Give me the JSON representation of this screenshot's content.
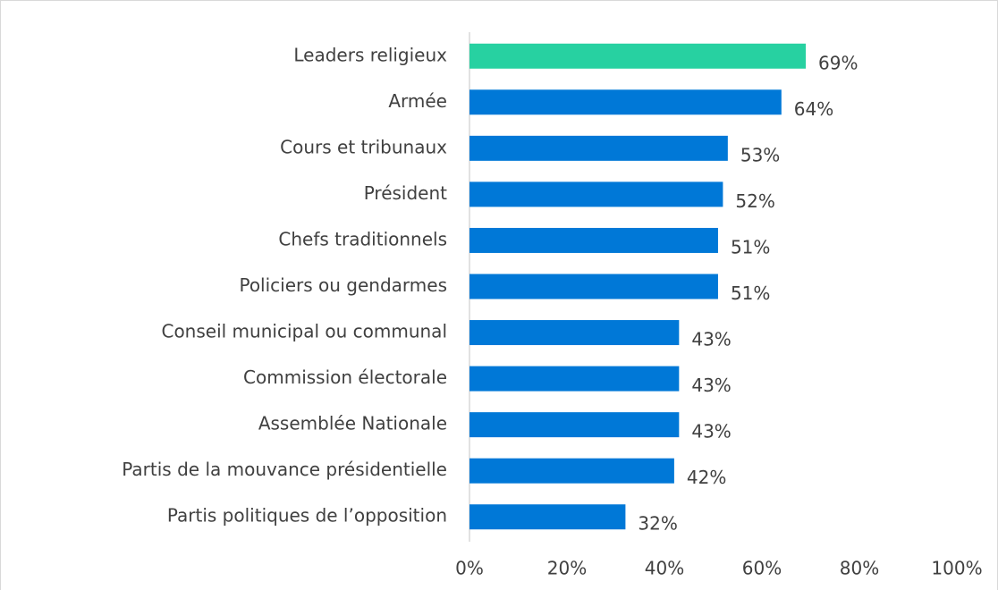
{
  "chart_data": {
    "type": "bar",
    "orientation": "horizontal",
    "categories": [
      "Leaders religieux",
      "Armée",
      "Cours et tribunaux",
      "Président",
      "Chefs traditionnels",
      "Policiers ou gendarmes",
      "Conseil municipal ou communal",
      "Commission électorale",
      "Assemblée Nationale",
      "Partis de la mouvance présidentielle",
      "Partis politiques de l’opposition"
    ],
    "values": [
      69,
      64,
      53,
      52,
      51,
      51,
      43,
      43,
      43,
      42,
      32
    ],
    "value_labels": [
      "69%",
      "64%",
      "53%",
      "52%",
      "51%",
      "51%",
      "43%",
      "43%",
      "43%",
      "42%",
      "32%"
    ],
    "colors": [
      "#27d1a1",
      "#0078d7",
      "#0078d7",
      "#0078d7",
      "#0078d7",
      "#0078d7",
      "#0078d7",
      "#0078d7",
      "#0078d7",
      "#0078d7",
      "#0078d7"
    ],
    "xlim": [
      0,
      100
    ],
    "xticks": [
      {
        "value": 0,
        "label": "0%"
      },
      {
        "value": 20,
        "label": "20%"
      },
      {
        "value": 40,
        "label": "40%"
      },
      {
        "value": 60,
        "label": "60%"
      },
      {
        "value": 80,
        "label": "80%"
      },
      {
        "value": 100,
        "label": "100%"
      }
    ],
    "grid": false
  }
}
